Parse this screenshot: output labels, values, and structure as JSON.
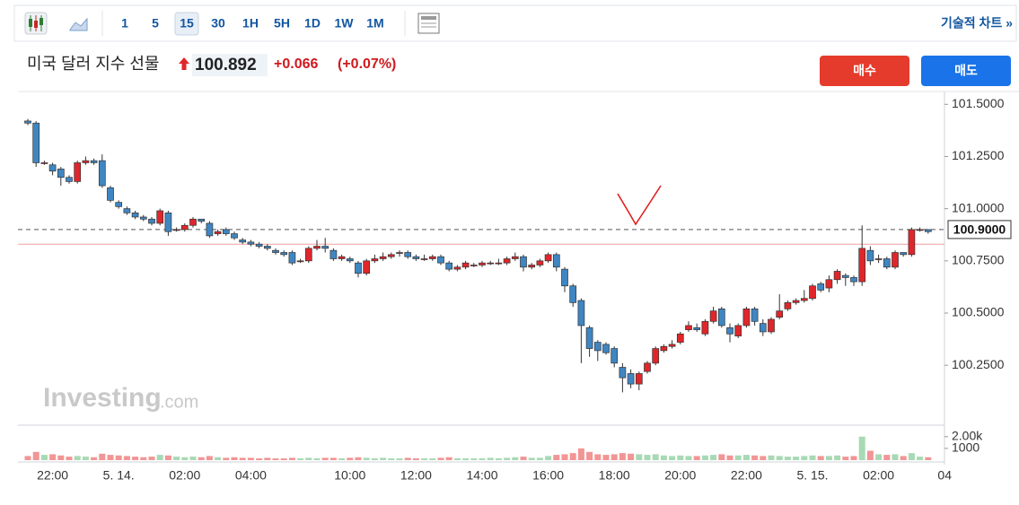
{
  "toolbar": {
    "intervals": [
      "1",
      "5",
      "15",
      "30",
      "1H",
      "5H",
      "1D",
      "1W",
      "1M"
    ],
    "selected": "15",
    "technical_chart": "기술적 차트 »"
  },
  "header": {
    "title": "미국 달러 지수 선물",
    "price": "100.892",
    "change": "+0.066",
    "change_percent": "(+0.07%)",
    "buy": "매수",
    "sell": "매도"
  },
  "watermark": {
    "brand": "Investing",
    "suffix": ".com"
  },
  "chart_data": {
    "type": "candlestick",
    "categories": [
      null,
      null,
      null,
      "22:00",
      null,
      null,
      null,
      null,
      null,
      null,
      null,
      "5. 14.",
      null,
      null,
      null,
      null,
      null,
      null,
      null,
      "02:00",
      null,
      null,
      null,
      null,
      null,
      null,
      null,
      "04:00",
      null,
      null,
      null,
      null,
      null,
      null,
      null,
      null,
      null,
      null,
      null,
      "10:00",
      null,
      null,
      null,
      null,
      null,
      null,
      null,
      "12:00",
      null,
      null,
      null,
      null,
      null,
      null,
      null,
      "14:00",
      null,
      null,
      null,
      null,
      null,
      null,
      null,
      "16:00",
      null,
      null,
      null,
      null,
      null,
      null,
      null,
      "18:00",
      null,
      null,
      null,
      null,
      null,
      null,
      null,
      "20:00",
      null,
      null,
      null,
      null,
      null,
      null,
      null,
      "22:00",
      null,
      null,
      null,
      null,
      null,
      null,
      null,
      "5. 15.",
      null,
      null,
      null,
      null,
      null,
      null,
      null,
      "02:00",
      null,
      null,
      null,
      null,
      null,
      null,
      null,
      "04"
    ],
    "open": [
      101.42,
      101.41,
      101.22,
      101.21,
      101.19,
      101.15,
      101.13,
      101.22,
      101.23,
      101.23,
      101.1,
      101.03,
      101.0,
      100.98,
      100.96,
      100.95,
      100.93,
      100.98,
      100.9,
      100.9,
      100.92,
      100.95,
      100.93,
      100.88,
      100.9,
      100.88,
      100.85,
      100.84,
      100.83,
      100.82,
      100.8,
      100.79,
      100.79,
      100.75,
      100.75,
      100.81,
      100.82,
      100.8,
      100.76,
      100.76,
      100.74,
      100.69,
      100.75,
      100.76,
      100.77,
      100.79,
      100.79,
      100.77,
      100.76,
      100.76,
      100.77,
      100.74,
      100.71,
      100.72,
      100.73,
      100.73,
      100.74,
      100.74,
      100.74,
      100.76,
      100.77,
      100.72,
      100.73,
      100.75,
      100.78,
      100.71,
      100.63,
      100.56,
      100.43,
      100.36,
      100.35,
      100.33,
      100.24,
      100.21,
      100.16,
      100.22,
      100.26,
      100.32,
      100.34,
      100.36,
      100.42,
      100.43,
      100.4,
      100.46,
      100.52,
      100.43,
      100.39,
      100.44,
      100.52,
      100.45,
      100.41,
      100.48,
      100.52,
      100.55,
      100.56,
      100.57,
      100.64,
      100.62,
      100.66,
      100.68,
      100.67,
      100.65,
      100.8,
      100.76,
      100.76,
      100.72,
      100.79,
      100.78,
      100.9,
      100.9,
      null,
      null
    ],
    "high": [
      101.43,
      101.42,
      101.23,
      101.22,
      101.2,
      101.16,
      101.23,
      101.25,
      101.24,
      101.26,
      101.11,
      101.04,
      101.01,
      100.99,
      100.97,
      100.96,
      101.0,
      100.99,
      100.91,
      100.93,
      100.96,
      100.95,
      100.94,
      100.9,
      100.91,
      100.89,
      100.86,
      100.85,
      100.84,
      100.83,
      100.81,
      100.8,
      100.8,
      100.76,
      100.82,
      100.85,
      100.86,
      100.81,
      100.78,
      100.77,
      100.75,
      100.76,
      100.78,
      100.79,
      100.79,
      100.8,
      100.8,
      100.78,
      100.78,
      100.78,
      100.78,
      100.75,
      100.73,
      100.75,
      100.74,
      100.75,
      100.75,
      100.76,
      100.77,
      100.79,
      100.78,
      100.74,
      100.76,
      100.79,
      100.79,
      100.72,
      100.64,
      100.57,
      100.44,
      100.37,
      100.36,
      100.34,
      100.26,
      100.23,
      100.22,
      100.27,
      100.34,
      100.35,
      100.37,
      100.41,
      100.46,
      100.45,
      100.47,
      100.53,
      100.53,
      100.45,
      100.45,
      100.53,
      100.53,
      100.47,
      100.48,
      100.59,
      100.56,
      100.57,
      100.61,
      100.64,
      100.65,
      100.68,
      100.71,
      100.69,
      100.68,
      100.92,
      100.82,
      100.78,
      100.77,
      100.8,
      100.79,
      100.91,
      100.91,
      100.9,
      null,
      null
    ],
    "low": [
      101.4,
      101.2,
      101.21,
      101.16,
      101.11,
      101.12,
      101.12,
      101.21,
      101.21,
      101.1,
      101.03,
      101.0,
      100.97,
      100.95,
      100.94,
      100.92,
      100.92,
      100.87,
      100.89,
      100.89,
      100.91,
      100.93,
      100.86,
      100.87,
      100.87,
      100.85,
      100.83,
      100.82,
      100.81,
      100.8,
      100.78,
      100.77,
      100.73,
      100.74,
      100.74,
      100.8,
      100.79,
      100.75,
      100.75,
      100.74,
      100.67,
      100.68,
      100.74,
      100.75,
      100.76,
      100.77,
      100.76,
      100.75,
      100.75,
      100.75,
      100.73,
      100.7,
      100.7,
      100.71,
      100.72,
      100.72,
      100.73,
      100.73,
      100.73,
      100.75,
      100.7,
      100.71,
      100.72,
      100.74,
      100.7,
      100.6,
      100.53,
      100.26,
      100.29,
      100.27,
      100.3,
      100.24,
      100.12,
      100.14,
      100.13,
      100.21,
      100.25,
      100.31,
      100.33,
      100.35,
      100.41,
      100.41,
      100.39,
      100.45,
      100.43,
      100.36,
      100.38,
      100.43,
      100.44,
      100.39,
      100.4,
      100.47,
      100.51,
      100.54,
      100.55,
      100.56,
      100.6,
      100.6,
      100.64,
      100.63,
      100.63,
      100.63,
      100.73,
      100.74,
      100.71,
      100.71,
      100.77,
      100.77,
      100.89,
      100.88,
      null,
      null
    ],
    "close": [
      101.41,
      101.22,
      101.22,
      101.18,
      101.15,
      101.13,
      101.22,
      101.23,
      101.22,
      101.11,
      101.04,
      101.01,
      100.98,
      100.96,
      100.95,
      100.93,
      100.99,
      100.89,
      100.9,
      100.92,
      100.95,
      100.94,
      100.87,
      100.89,
      100.88,
      100.86,
      100.84,
      100.83,
      100.82,
      100.81,
      100.79,
      100.78,
      100.74,
      100.75,
      100.81,
      100.82,
      100.81,
      100.76,
      100.77,
      100.75,
      100.69,
      100.75,
      100.76,
      100.77,
      100.78,
      100.79,
      100.77,
      100.76,
      100.76,
      100.77,
      100.74,
      100.71,
      100.72,
      100.74,
      100.73,
      100.74,
      100.74,
      100.74,
      100.76,
      100.77,
      100.72,
      100.73,
      100.75,
      100.78,
      100.72,
      100.63,
      100.55,
      100.44,
      100.33,
      100.32,
      100.31,
      100.26,
      100.19,
      100.16,
      100.21,
      100.26,
      100.33,
      100.34,
      100.35,
      100.4,
      100.44,
      100.42,
      100.46,
      100.51,
      100.44,
      100.4,
      100.44,
      100.52,
      100.46,
      100.41,
      100.47,
      100.51,
      100.55,
      100.56,
      100.57,
      100.63,
      100.61,
      100.66,
      100.7,
      100.67,
      100.65,
      100.81,
      100.75,
      100.76,
      100.72,
      100.79,
      100.78,
      100.9,
      100.9,
      100.89,
      null,
      null
    ],
    "volume": [
      350,
      700,
      450,
      500,
      400,
      300,
      350,
      300,
      250,
      550,
      450,
      400,
      350,
      300,
      250,
      300,
      450,
      400,
      300,
      250,
      300,
      250,
      350,
      250,
      200,
      250,
      200,
      200,
      150,
      200,
      150,
      150,
      200,
      150,
      200,
      150,
      200,
      200,
      150,
      200,
      250,
      200,
      150,
      200,
      150,
      150,
      200,
      150,
      150,
      150,
      200,
      250,
      150,
      150,
      150,
      150,
      200,
      150,
      200,
      250,
      300,
      200,
      200,
      350,
      450,
      500,
      600,
      1000,
      700,
      500,
      450,
      500,
      600,
      550,
      500,
      450,
      500,
      400,
      350,
      400,
      350,
      350,
      400,
      450,
      500,
      400,
      400,
      450,
      400,
      350,
      400,
      350,
      300,
      300,
      350,
      400,
      350,
      350,
      400,
      300,
      350,
      2000,
      800,
      500,
      450,
      500,
      350,
      600,
      300,
      250,
      null,
      null
    ],
    "up_color": "#e0262b",
    "down_color": "#3f86c2",
    "volume_up_color": "#a8d9b5",
    "volume_down_color": "#f29595",
    "ylim": [
      99.98,
      101.57
    ],
    "yticks": [
      {
        "value": 101.5,
        "label": "101.5000"
      },
      {
        "value": 101.25,
        "label": "101.2500"
      },
      {
        "value": 101.0,
        "label": "101.0000"
      },
      {
        "value": 100.75,
        "label": "100.7500"
      },
      {
        "value": 100.5,
        "label": "100.5000"
      },
      {
        "value": 100.25,
        "label": "100.2500"
      }
    ],
    "volume_lim": [
      0,
      2900
    ],
    "volume_ticks": [
      {
        "value": 2000,
        "label": "2.00k"
      },
      1000
    ],
    "price_line": {
      "value": 100.9,
      "label": "100.9000"
    },
    "reference_line": 100.83,
    "grid": false
  }
}
